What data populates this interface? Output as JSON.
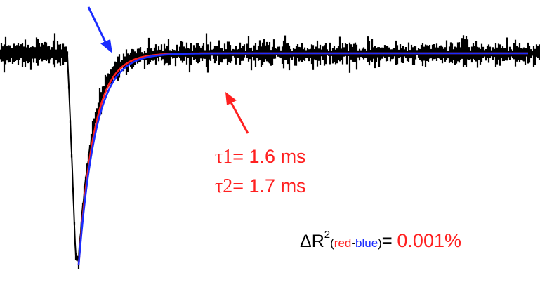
{
  "chart_data": {
    "type": "line",
    "title": "",
    "xlabel": "",
    "ylabel": "",
    "grid": false,
    "series": [
      {
        "name": "",
        "role": "noisy recorded trace",
        "color": "#000000",
        "description_points": {
          "baseline_left": 0.0,
          "trough": -1.0,
          "baseline_right": 0.0
        }
      },
      {
        "name": "red",
        "color": "#ff2020"
      },
      {
        "name": "blue",
        "color": "#1a2cff"
      }
    ],
    "fits": [
      {
        "name": "red",
        "tau_label": "τ1",
        "tau_value": "= 1.6 ms",
        "tau_ms": 1.6,
        "color": "#ff2020"
      },
      {
        "name": "blue",
        "tau_label": "τ2",
        "tau_value": "= 1.7 ms",
        "tau_ms": 1.7,
        "color": "#1a2cff"
      }
    ],
    "annotations": {
      "blue_arrow": {
        "color": "#1a2cff"
      },
      "red_arrow": {
        "color": "#ff2020"
      }
    },
    "delta_r2": {
      "delta": "ΔR",
      "sup": "2",
      "open": "(",
      "red_word": "red",
      "dash": "-",
      "blue_word": "blue",
      "close": ")",
      "equals": "=",
      "value": "0.001%",
      "value_color": "#ff2020"
    }
  },
  "colors": {
    "trace": "#000000",
    "red": "#ff2020",
    "blue": "#1a2cff",
    "background": "#ffffff"
  }
}
